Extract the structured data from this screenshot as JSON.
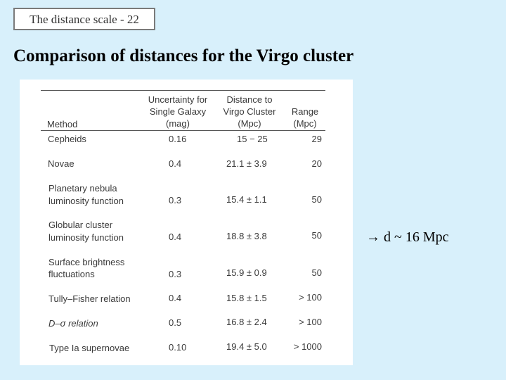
{
  "slide_tag": "The distance scale - 22",
  "title": "Comparison of distances for the Virgo cluster",
  "table": {
    "headers": {
      "method": "Method",
      "uncertainty": [
        "Uncertainty for",
        "Single Galaxy",
        "(mag)"
      ],
      "distance": [
        "Distance to",
        "Virgo Cluster",
        "(Mpc)"
      ],
      "range": [
        "Range",
        "(Mpc)"
      ]
    },
    "rows": [
      {
        "method": [
          "Cepheids"
        ],
        "uncertainty": "0.16",
        "distance": "15 − 25",
        "range": "29"
      },
      {
        "method": [
          "Novae"
        ],
        "uncertainty": "0.4",
        "distance": "21.1 ± 3.9",
        "range": "20"
      },
      {
        "method": [
          "Planetary nebula",
          "luminosity function"
        ],
        "uncertainty": "0.3",
        "distance": "15.4 ± 1.1",
        "range": "50"
      },
      {
        "method": [
          "Globular cluster",
          "luminosity function"
        ],
        "uncertainty": "0.4",
        "distance": "18.8 ± 3.8",
        "range": "50"
      },
      {
        "method": [
          "Surface brightness",
          "fluctuations"
        ],
        "uncertainty": "0.3",
        "distance": "15.9 ± 0.9",
        "range": "50"
      },
      {
        "method": [
          "Tully–Fisher relation"
        ],
        "uncertainty": "0.4",
        "distance": "15.8 ± 1.5",
        "range": "> 100"
      },
      {
        "method": [
          "D–σ relation"
        ],
        "uncertainty": "0.5",
        "distance": "16.8 ± 2.4",
        "range": "> 100"
      },
      {
        "method": [
          "Type Ia supernovae"
        ],
        "uncertainty": "0.10",
        "distance": "19.4 ± 5.0",
        "range": "> 1000"
      }
    ]
  },
  "note": "→ d ~ 16 Mpc"
}
